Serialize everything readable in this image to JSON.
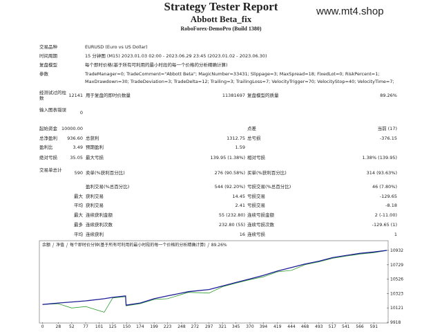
{
  "header": {
    "title": "Strategy Tester Report",
    "name": "Abbott Beta_fix",
    "server": "RoboForex-DemoPro (Build 1380)",
    "watermark": "www.mt4.shop"
  },
  "info": [
    {
      "label": "交易品种",
      "value": [
        "EURUSD (Euro vs US Dollar)"
      ]
    },
    {
      "label": "时间周期",
      "value": [
        "15 分钟图 (M15) 2023.01.03 02:00 - 2023.06.29 23:45 (2023.01.02 - 2023.06.30)"
      ]
    },
    {
      "label": "复盘模型",
      "value": [
        "每个即时价格(基于所有可利用的最小时段的每一个价格的分析精确计算)"
      ]
    },
    {
      "label": "参数",
      "value": [
        "TradeManager=0; TradeComment=\"Abbott Beta\"; MagicNumber=33431; Slippage=3; MaxSpread=18; FixedLot=0; RiskPercent=1;",
        "MaxDrawdown=30; TradeDeviation=3; TradeDelta=12; Trailing=3; TrailingLoss=7; VelocityTrigger=70; VelocityStop=40; VelocityTime=7;"
      ]
    }
  ],
  "stats": [
    [
      "经测试过的柱数",
      "12141",
      "用于复盘的即时价数量",
      "11381697",
      "复盘模型的质量",
      "89.26%"
    ],
    [
      "输入图表错误",
      "0",
      null,
      null,
      null,
      null
    ],
    [
      "起始资金",
      "10000.00",
      null,
      null,
      "点差",
      "当前 (17)"
    ],
    [
      "总净盈利",
      "936.60",
      "总获利",
      "1312.75",
      "总亏损",
      "-376.15"
    ],
    [
      "盈利比",
      "3.49",
      "预期盈利",
      "1.59",
      null,
      null
    ],
    [
      "绝对亏损",
      "35.05",
      "最大亏损",
      "139.95 (1.38%)",
      "相对亏损",
      "1.38% (139.95)"
    ],
    [
      "交易单总计",
      "590",
      "卖单(%获利百分比)",
      "276 (90.58%)",
      "买单(%获利百分比)",
      "314 (93.63%)"
    ],
    [
      null,
      null,
      "盈利交易(%总百分比)",
      "544 (92.20%)",
      "亏损交易(%总百分比)",
      "46 (7.80%)"
    ],
    [
      null,
      "最大",
      "获利交易",
      "14.45",
      "亏损交易",
      "-129.65"
    ],
    [
      null,
      "平均",
      "获利交易",
      "2.41",
      "亏损交易",
      "-8.18"
    ],
    [
      null,
      "最大",
      "连续获利金额",
      "55 (232.80)",
      "连续亏损金额",
      "2 (-11.00)"
    ],
    [
      null,
      "最多",
      "连续获利次数",
      "232.80 (55)",
      "连续亏损次数",
      "-129.65 (1)"
    ],
    [
      null,
      "平均",
      "连续获利",
      "16",
      "连续亏损",
      "1"
    ]
  ],
  "chart_data": {
    "type": "line",
    "annotation": "每个即时价分钟(基于所有可利用的最小时段的每一个价格的分析精确计算)",
    "quality": "89.26%",
    "x": [
      0,
      28,
      52,
      77,
      110,
      125,
      148,
      149,
      174,
      199,
      223,
      260,
      297,
      321,
      345,
      370,
      394,
      419,
      444,
      468,
      493,
      517,
      541,
      566,
      591,
      614
    ],
    "series": [
      {
        "name": "余额",
        "color": "#1c1c96",
        "values": [
          10170,
          10190,
          10205,
          10220,
          10250,
          10270,
          10290,
          10160,
          10190,
          10250,
          10290,
          10350,
          10380,
          10430,
          10480,
          10530,
          10580,
          10640,
          10690,
          10740,
          10780,
          10830,
          10860,
          10890,
          10910,
          10932
        ]
      },
      {
        "name": "净值",
        "color": "#2e9e2e",
        "values": [
          10170,
          10180,
          10120,
          10140,
          10060,
          10260,
          10280,
          10150,
          10180,
          10240,
          10250,
          10340,
          10330,
          10420,
          10470,
          10520,
          10560,
          10630,
          10650,
          10730,
          10770,
          10820,
          10850,
          10880,
          10900,
          10930
        ]
      }
    ],
    "xlim": [
      -2,
      614
    ],
    "ylim": [
      9918,
      10971
    ],
    "xticks": [
      0,
      28,
      52,
      77,
      101,
      125,
      150,
      174,
      199,
      223,
      248,
      272,
      297,
      321,
      345,
      370,
      394,
      419,
      444,
      468,
      493,
      517,
      541,
      566,
      591
    ],
    "yticks": [
      9918,
      10121,
      10323,
      10526,
      10729,
      10932
    ]
  }
}
